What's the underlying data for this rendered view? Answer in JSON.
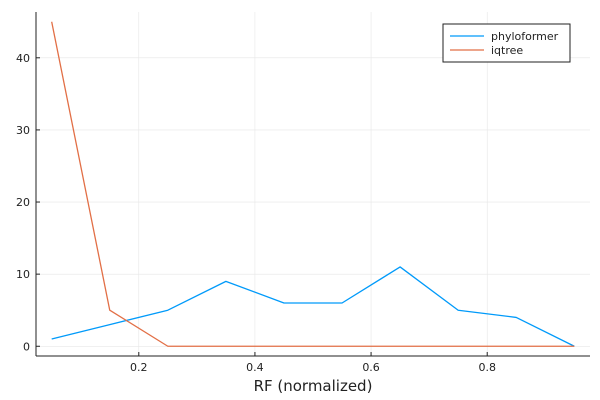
{
  "chart_data": {
    "type": "line",
    "title": "",
    "xlabel": "RF (normalized)",
    "ylabel": "",
    "x": [
      0.05,
      0.15,
      0.25,
      0.35,
      0.45,
      0.55,
      0.65,
      0.75,
      0.85,
      0.95
    ],
    "series": [
      {
        "name": "phyloformer",
        "color": "#009AFA",
        "values": [
          1,
          3,
          5,
          9,
          6,
          6,
          11,
          5,
          4,
          0
        ]
      },
      {
        "name": "iqtree",
        "color": "#E26F46",
        "values": [
          45,
          5,
          0,
          0,
          0,
          0,
          0,
          0,
          0,
          0
        ]
      }
    ],
    "xlim": [
      0.023,
      0.977
    ],
    "ylim": [
      -1.35,
      46.35
    ],
    "xticks": [
      0.2,
      0.4,
      0.6,
      0.8
    ],
    "xtick_labels": [
      "0.2",
      "0.4",
      "0.6",
      "0.8"
    ],
    "yticks": [
      0,
      10,
      20,
      30,
      40
    ],
    "ytick_labels": [
      "0",
      "10",
      "20",
      "30",
      "40"
    ],
    "grid": true,
    "legend_position": "top-right"
  }
}
